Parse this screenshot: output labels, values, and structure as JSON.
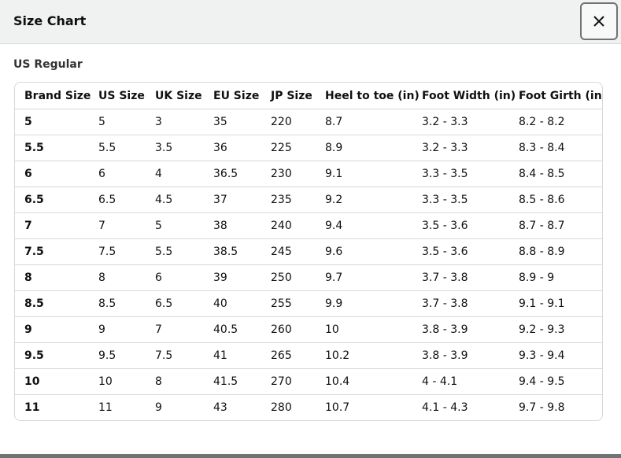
{
  "header": {
    "title": "Size Chart"
  },
  "section": {
    "title": "US Regular"
  },
  "table": {
    "columns": [
      "Brand Size",
      "US Size",
      "UK Size",
      "EU Size",
      "JP Size",
      "Heel to toe (in)",
      "Foot Width (in)",
      "Foot Girth (in)"
    ],
    "rows": [
      [
        "5",
        "5",
        "3",
        "35",
        "220",
        "8.7",
        "3.2 - 3.3",
        "8.2 - 8.2"
      ],
      [
        "5.5",
        "5.5",
        "3.5",
        "36",
        "225",
        "8.9",
        "3.2 - 3.3",
        "8.3 - 8.4"
      ],
      [
        "6",
        "6",
        "4",
        "36.5",
        "230",
        "9.1",
        "3.3 - 3.5",
        "8.4 - 8.5"
      ],
      [
        "6.5",
        "6.5",
        "4.5",
        "37",
        "235",
        "9.2",
        "3.3 - 3.5",
        "8.5 - 8.6"
      ],
      [
        "7",
        "7",
        "5",
        "38",
        "240",
        "9.4",
        "3.5 - 3.6",
        "8.7 - 8.7"
      ],
      [
        "7.5",
        "7.5",
        "5.5",
        "38.5",
        "245",
        "9.6",
        "3.5 - 3.6",
        "8.8 - 8.9"
      ],
      [
        "8",
        "8",
        "6",
        "39",
        "250",
        "9.7",
        "3.7 - 3.8",
        "8.9 - 9"
      ],
      [
        "8.5",
        "8.5",
        "6.5",
        "40",
        "255",
        "9.9",
        "3.7 - 3.8",
        "9.1 - 9.1"
      ],
      [
        "9",
        "9",
        "7",
        "40.5",
        "260",
        "10",
        "3.8 - 3.9",
        "9.2 - 9.3"
      ],
      [
        "9.5",
        "9.5",
        "7.5",
        "41",
        "265",
        "10.2",
        "3.8 - 3.9",
        "9.3 - 9.4"
      ],
      [
        "10",
        "10",
        "8",
        "41.5",
        "270",
        "10.4",
        "4 - 4.1",
        "9.4 - 9.5"
      ],
      [
        "11",
        "11",
        "9",
        "43",
        "280",
        "10.7",
        "4.1 - 4.3",
        "9.7 - 9.8"
      ]
    ]
  }
}
